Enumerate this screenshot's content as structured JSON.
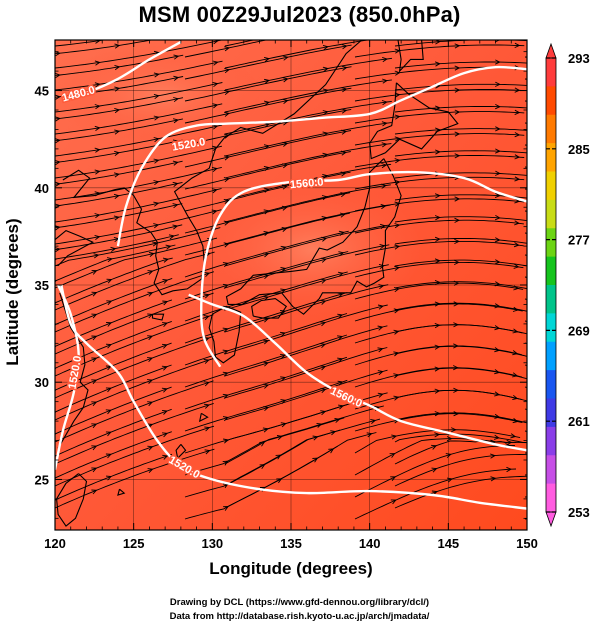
{
  "title": "MSM 00Z29Jul2023 (850.0hPa)",
  "chart_data": {
    "type": "map",
    "title": "MSM 00Z29Jul2023 (850.0hPa)",
    "xlabel": "Longitude (degrees)",
    "ylabel": "Latitude  (degrees)",
    "xlim": [
      120,
      150
    ],
    "ylim": [
      22.4,
      47.6
    ],
    "x_ticks": [
      120,
      125,
      130,
      135,
      140,
      145,
      150
    ],
    "y_ticks": [
      25,
      30,
      35,
      40,
      45
    ],
    "grid": true,
    "fill": "temperature (K), mostly 288-293",
    "overlay": "wind streamlines",
    "contours": [
      {
        "label": "1480.0",
        "points": [
          [
            120.5,
            44.6
          ],
          [
            122,
            44.9
          ],
          [
            124,
            45.6
          ],
          [
            126,
            46.6
          ],
          [
            128,
            47.5
          ]
        ]
      },
      {
        "label": "1520.0",
        "points": [
          [
            124,
            37
          ],
          [
            124.5,
            39
          ],
          [
            125.5,
            41
          ],
          [
            127,
            42.6
          ],
          [
            129,
            43.2
          ],
          [
            131,
            43.3
          ],
          [
            134,
            43.4
          ],
          [
            137,
            43.6
          ],
          [
            140,
            43.8
          ],
          [
            142,
            44.5
          ],
          [
            144,
            45.2
          ],
          [
            146,
            45.9
          ],
          [
            148,
            46.2
          ],
          [
            150,
            46.1
          ]
        ]
      },
      {
        "label": "1560.0",
        "points": [
          [
            130.5,
            30.8
          ],
          [
            129.5,
            32.2
          ],
          [
            129.3,
            34
          ],
          [
            129.6,
            36.5
          ],
          [
            130.5,
            38.6
          ],
          [
            132,
            39.8
          ],
          [
            135,
            40.3
          ],
          [
            138,
            40.4
          ],
          [
            140,
            40.7
          ],
          [
            143,
            40.8
          ],
          [
            146,
            40.5
          ],
          [
            148,
            39.8
          ],
          [
            150,
            39.3
          ]
        ]
      },
      {
        "label": "1560.0",
        "points": [
          [
            128.5,
            34.5
          ],
          [
            130,
            34
          ],
          [
            132,
            33.4
          ],
          [
            134,
            32
          ],
          [
            136,
            30.5
          ],
          [
            138,
            29.5
          ],
          [
            140,
            28.8
          ],
          [
            142,
            28
          ],
          [
            145,
            27.4
          ],
          [
            148,
            26.8
          ],
          [
            150,
            26.5
          ]
        ]
      },
      {
        "label": "1520.0",
        "points": [
          [
            120.4,
            35
          ],
          [
            121,
            33
          ],
          [
            122,
            32
          ],
          [
            124,
            30.5
          ],
          [
            125,
            29
          ],
          [
            126.5,
            27
          ],
          [
            128,
            25.7
          ],
          [
            130,
            25
          ],
          [
            133,
            24.5
          ],
          [
            136,
            24.3
          ],
          [
            140,
            24.4
          ],
          [
            144,
            24.2
          ],
          [
            147,
            23.8
          ],
          [
            150,
            23.5
          ]
        ]
      },
      {
        "label": "1520.0",
        "points": [
          [
            120,
            25.5
          ],
          [
            120.5,
            27.5
          ],
          [
            121.2,
            29.5
          ],
          [
            121.5,
            31.5
          ],
          [
            121,
            33.5
          ],
          [
            120.2,
            35
          ]
        ]
      }
    ],
    "contour_labels": [
      {
        "text": "1480.0",
        "lon": 121.5,
        "lat": 44.8,
        "angle": -15
      },
      {
        "text": "1520.0",
        "lon": 128.5,
        "lat": 42.2,
        "angle": -10
      },
      {
        "text": "1560.0",
        "lon": 136,
        "lat": 40.2,
        "angle": -5
      },
      {
        "text": "1560.0",
        "lon": 138.5,
        "lat": 29.2,
        "angle": 25
      },
      {
        "text": "1520.0",
        "lon": 128.2,
        "lat": 25.6,
        "angle": 30
      },
      {
        "text": "1520.0",
        "lon": 121.3,
        "lat": 30.5,
        "angle": -80
      }
    ],
    "colorbar": {
      "ticks": [
        253,
        261,
        269,
        277,
        285,
        293
      ],
      "min": 253,
      "max": 293,
      "colors": [
        "#ff5ce0",
        "#c64fe6",
        "#8a3ee8",
        "#3f3ae5",
        "#1956f0",
        "#00a0ff",
        "#00d6d6",
        "#00c48a",
        "#16c41e",
        "#6cd414",
        "#c8dc16",
        "#f0d000",
        "#ffa400",
        "#ff7a00",
        "#ff4a00",
        "#ff3c3c"
      ]
    }
  },
  "credits": {
    "line1": "Drawing by DCL (https://www.gfd-dennou.org/library/dcl/)",
    "line2": "Data from http://database.rish.kyoto-u.ac.jp/arch/jmadata/"
  }
}
